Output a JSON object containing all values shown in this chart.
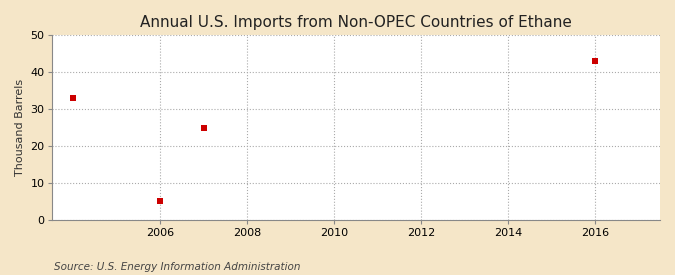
{
  "title": "Annual U.S. Imports from Non-OPEC Countries of Ethane",
  "ylabel": "Thousand Barrels",
  "source": "Source: U.S. Energy Information Administration",
  "background_color": "#f5e6c8",
  "plot_bg_color": "#ffffff",
  "data_x": [
    2004,
    2006,
    2007,
    2016
  ],
  "data_y": [
    33,
    5,
    25,
    43
  ],
  "marker_color": "#cc0000",
  "marker_style": "s",
  "marker_size": 4,
  "xlim": [
    2003.5,
    2017.5
  ],
  "ylim": [
    0,
    50
  ],
  "xticks": [
    2006,
    2008,
    2010,
    2012,
    2014,
    2016
  ],
  "yticks": [
    0,
    10,
    20,
    30,
    40,
    50
  ],
  "grid_color": "#aaaaaa",
  "grid_linestyle": ":",
  "grid_linewidth": 0.8,
  "title_fontsize": 11,
  "axis_label_fontsize": 8,
  "tick_fontsize": 8,
  "source_fontsize": 7.5
}
